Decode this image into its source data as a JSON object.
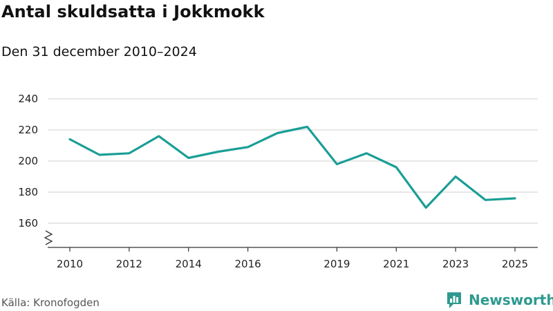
{
  "title": "Antal skuldsatta i Jokkmokk",
  "subtitle": "Den 31 december 2010–2024",
  "source": "Källa: Kronofogden",
  "brand": {
    "name": "Newsworthy",
    "icon": "bar-chart-speech-icon"
  },
  "colors": {
    "line": "#1a9e96",
    "grid": "#d9d9d9",
    "axis": "#333333",
    "brand": "#2d9a8f"
  },
  "chart_data": {
    "type": "line",
    "title": "Antal skuldsatta i Jokkmokk",
    "subtitle": "Den 31 december 2010–2024",
    "xlabel": "",
    "ylabel": "",
    "x": [
      2010,
      2011,
      2012,
      2013,
      2014,
      2015,
      2016,
      2017,
      2018,
      2019,
      2020,
      2021,
      2022,
      2023,
      2024,
      2025
    ],
    "y": [
      214,
      204,
      205,
      216,
      202,
      206,
      209,
      218,
      222,
      198,
      205,
      196,
      170,
      190,
      175,
      176
    ],
    "xticks": [
      "2010",
      "2012",
      "2014",
      "2016",
      "2019",
      "2021",
      "2023",
      "2025"
    ],
    "xtick_values": [
      2010,
      2012,
      2014,
      2016,
      2019,
      2021,
      2023,
      2025
    ],
    "yticks": [
      "160",
      "180",
      "200",
      "220",
      "240"
    ],
    "ytick_values": [
      160,
      180,
      200,
      220,
      240
    ],
    "ylim": [
      150,
      240
    ],
    "xlim": [
      2010,
      2025
    ],
    "axis_break": true,
    "grid": true
  }
}
